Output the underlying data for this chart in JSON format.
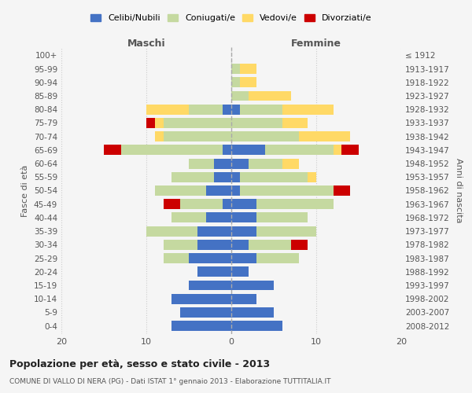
{
  "age_groups": [
    "0-4",
    "5-9",
    "10-14",
    "15-19",
    "20-24",
    "25-29",
    "30-34",
    "35-39",
    "40-44",
    "45-49",
    "50-54",
    "55-59",
    "60-64",
    "65-69",
    "70-74",
    "75-79",
    "80-84",
    "85-89",
    "90-94",
    "95-99",
    "100+"
  ],
  "birth_years": [
    "2008-2012",
    "2003-2007",
    "1998-2002",
    "1993-1997",
    "1988-1992",
    "1983-1987",
    "1978-1982",
    "1973-1977",
    "1968-1972",
    "1963-1967",
    "1958-1962",
    "1953-1957",
    "1948-1952",
    "1943-1947",
    "1938-1942",
    "1933-1937",
    "1928-1932",
    "1923-1927",
    "1918-1922",
    "1913-1917",
    "≤ 1912"
  ],
  "colors": {
    "celibi": "#4472C4",
    "coniugati": "#c5d9a0",
    "vedovi": "#ffd966",
    "divorziati": "#cc0000"
  },
  "maschi": {
    "celibi": [
      7,
      6,
      7,
      5,
      4,
      5,
      4,
      4,
      3,
      1,
      3,
      2,
      2,
      1,
      0,
      0,
      1,
      0,
      0,
      0,
      0
    ],
    "coniugati": [
      0,
      0,
      0,
      0,
      0,
      3,
      4,
      6,
      4,
      5,
      6,
      5,
      3,
      12,
      8,
      8,
      4,
      0,
      0,
      0,
      0
    ],
    "vedovi": [
      0,
      0,
      0,
      0,
      0,
      0,
      0,
      0,
      0,
      0,
      0,
      0,
      0,
      0,
      1,
      1,
      5,
      0,
      0,
      0,
      0
    ],
    "divorziati": [
      0,
      0,
      0,
      0,
      0,
      0,
      0,
      0,
      0,
      2,
      0,
      0,
      0,
      2,
      0,
      1,
      0,
      0,
      0,
      0,
      0
    ]
  },
  "femmine": {
    "celibi": [
      6,
      5,
      3,
      5,
      2,
      3,
      2,
      3,
      3,
      3,
      1,
      1,
      2,
      4,
      0,
      0,
      1,
      0,
      0,
      0,
      0
    ],
    "coniugati": [
      0,
      0,
      0,
      0,
      0,
      5,
      5,
      7,
      6,
      9,
      11,
      8,
      4,
      8,
      8,
      6,
      5,
      2,
      1,
      1,
      0
    ],
    "vedovi": [
      0,
      0,
      0,
      0,
      0,
      0,
      0,
      0,
      0,
      0,
      0,
      1,
      2,
      1,
      6,
      3,
      6,
      5,
      2,
      2,
      0
    ],
    "divorziati": [
      0,
      0,
      0,
      0,
      0,
      0,
      2,
      0,
      0,
      0,
      2,
      0,
      0,
      2,
      0,
      0,
      0,
      0,
      0,
      0,
      0
    ]
  },
  "xlim": 20,
  "title": "Popolazione per età, sesso e stato civile - 2013",
  "subtitle": "COMUNE DI VALLO DI NERA (PG) - Dati ISTAT 1° gennaio 2013 - Elaborazione TUTTITALIA.IT",
  "ylabel_left": "Fasce di età",
  "ylabel_right": "Anni di nascita",
  "xlabel_left": "Maschi",
  "xlabel_right": "Femmine",
  "legend_labels": [
    "Celibi/Nubili",
    "Coniugati/e",
    "Vedovi/e",
    "Divorziati/e"
  ],
  "bg_color": "#f5f5f5",
  "bar_height": 0.75
}
